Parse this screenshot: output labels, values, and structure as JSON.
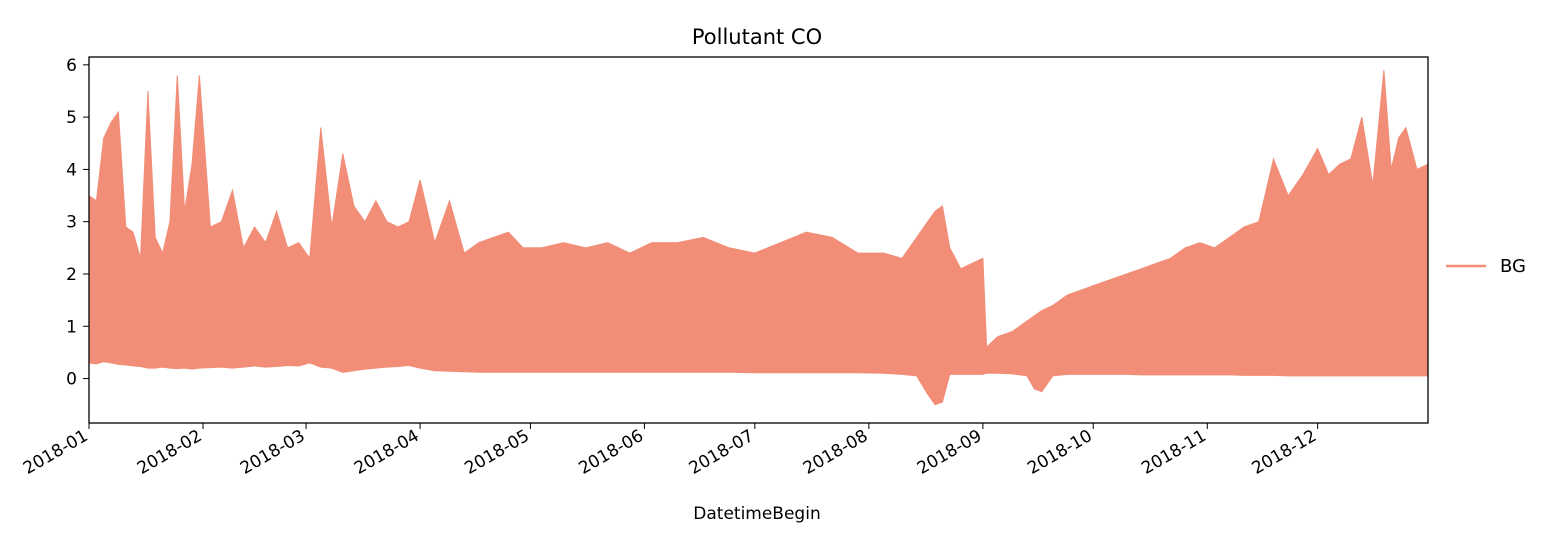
{
  "chart_data": {
    "type": "area",
    "title": "Pollutant CO",
    "xlabel": "DatetimeBegin",
    "ylabel": "",
    "xlim": [
      "2018-01-01",
      "2018-12-31"
    ],
    "ylim": [
      -0.85,
      6.15
    ],
    "yticks": [
      0,
      1,
      2,
      3,
      4,
      5,
      6
    ],
    "xticks": [
      "2018-01",
      "2018-02",
      "2018-03",
      "2018-04",
      "2018-05",
      "2018-06",
      "2018-07",
      "2018-08",
      "2018-09",
      "2018-10",
      "2018-11",
      "2018-12"
    ],
    "grid": false,
    "legend_position": "right",
    "series": [
      {
        "name": "BG",
        "color": "#f28e78",
        "x_dates": [
          "2018-01-01",
          "2018-01-03",
          "2018-01-05",
          "2018-01-07",
          "2018-01-09",
          "2018-01-11",
          "2018-01-13",
          "2018-01-15",
          "2018-01-17",
          "2018-01-19",
          "2018-01-21",
          "2018-01-23",
          "2018-01-25",
          "2018-01-27",
          "2018-01-29",
          "2018-01-31",
          "2018-02-03",
          "2018-02-06",
          "2018-02-09",
          "2018-02-12",
          "2018-02-15",
          "2018-02-18",
          "2018-02-21",
          "2018-02-24",
          "2018-02-27",
          "2018-03-02",
          "2018-03-05",
          "2018-03-08",
          "2018-03-11",
          "2018-03-14",
          "2018-03-17",
          "2018-03-20",
          "2018-03-23",
          "2018-03-26",
          "2018-03-29",
          "2018-04-01",
          "2018-04-05",
          "2018-04-09",
          "2018-04-13",
          "2018-04-17",
          "2018-04-21",
          "2018-04-25",
          "2018-04-29",
          "2018-05-04",
          "2018-05-10",
          "2018-05-16",
          "2018-05-22",
          "2018-05-28",
          "2018-06-03",
          "2018-06-10",
          "2018-06-17",
          "2018-06-24",
          "2018-07-01",
          "2018-07-08",
          "2018-07-15",
          "2018-07-22",
          "2018-07-29",
          "2018-08-05",
          "2018-08-10",
          "2018-08-14",
          "2018-08-17",
          "2018-08-19",
          "2018-08-21",
          "2018-08-23",
          "2018-08-26",
          "2018-08-29",
          "2018-09-01",
          "2018-09-02",
          "2018-09-05",
          "2018-09-09",
          "2018-09-13",
          "2018-09-15",
          "2018-09-17",
          "2018-09-20",
          "2018-09-24",
          "2018-09-28",
          "2018-10-02",
          "2018-10-06",
          "2018-10-10",
          "2018-10-14",
          "2018-10-18",
          "2018-10-22",
          "2018-10-26",
          "2018-10-30",
          "2018-11-03",
          "2018-11-07",
          "2018-11-11",
          "2018-11-15",
          "2018-11-19",
          "2018-11-23",
          "2018-11-27",
          "2018-12-01",
          "2018-12-04",
          "2018-12-07",
          "2018-12-10",
          "2018-12-13",
          "2018-12-16",
          "2018-12-19",
          "2018-12-21",
          "2018-12-23",
          "2018-12-25",
          "2018-12-28",
          "2018-12-31"
        ],
        "upper": [
          3.5,
          3.4,
          4.6,
          4.9,
          5.1,
          2.9,
          2.8,
          2.3,
          5.5,
          2.7,
          2.4,
          3.0,
          5.8,
          3.2,
          4.1,
          5.8,
          2.9,
          3.0,
          3.6,
          2.5,
          2.9,
          2.6,
          3.2,
          2.5,
          2.6,
          2.3,
          4.8,
          2.9,
          4.3,
          3.3,
          3.0,
          3.4,
          3.0,
          2.9,
          3.0,
          3.8,
          2.6,
          3.4,
          2.4,
          2.6,
          2.7,
          2.8,
          2.5,
          2.5,
          2.6,
          2.5,
          2.6,
          2.4,
          2.6,
          2.6,
          2.7,
          2.5,
          2.4,
          2.6,
          2.8,
          2.7,
          2.4,
          2.4,
          2.3,
          2.7,
          3.0,
          3.2,
          3.3,
          2.5,
          2.1,
          2.2,
          2.3,
          0.6,
          0.8,
          0.9,
          1.1,
          1.2,
          1.3,
          1.4,
          1.6,
          1.7,
          1.8,
          1.9,
          2.0,
          2.1,
          2.2,
          2.3,
          2.5,
          2.6,
          2.5,
          2.7,
          2.9,
          3.0,
          4.2,
          3.5,
          3.9,
          4.4,
          3.9,
          4.1,
          4.2,
          5.0,
          3.7,
          5.9,
          4.0,
          4.6,
          4.8,
          4.0,
          4.1
        ],
        "lower": [
          0.3,
          0.28,
          0.32,
          0.3,
          0.27,
          0.26,
          0.24,
          0.23,
          0.2,
          0.2,
          0.22,
          0.2,
          0.19,
          0.2,
          0.18,
          0.2,
          0.21,
          0.22,
          0.2,
          0.22,
          0.24,
          0.22,
          0.23,
          0.25,
          0.24,
          0.3,
          0.22,
          0.2,
          0.12,
          0.15,
          0.18,
          0.2,
          0.22,
          0.23,
          0.25,
          0.2,
          0.15,
          0.14,
          0.13,
          0.12,
          0.12,
          0.12,
          0.12,
          0.12,
          0.12,
          0.12,
          0.12,
          0.12,
          0.12,
          0.12,
          0.12,
          0.12,
          0.11,
          0.11,
          0.11,
          0.11,
          0.11,
          0.1,
          0.08,
          0.05,
          -0.3,
          -0.5,
          -0.45,
          0.08,
          0.08,
          0.08,
          0.08,
          0.1,
          0.1,
          0.09,
          0.05,
          -0.2,
          -0.25,
          0.05,
          0.08,
          0.08,
          0.08,
          0.08,
          0.08,
          0.07,
          0.07,
          0.07,
          0.07,
          0.07,
          0.07,
          0.07,
          0.06,
          0.06,
          0.06,
          0.05,
          0.05,
          0.05,
          0.05,
          0.05,
          0.05,
          0.05,
          0.05,
          0.05,
          0.05,
          0.05,
          0.05,
          0.05,
          0.05
        ]
      }
    ]
  }
}
